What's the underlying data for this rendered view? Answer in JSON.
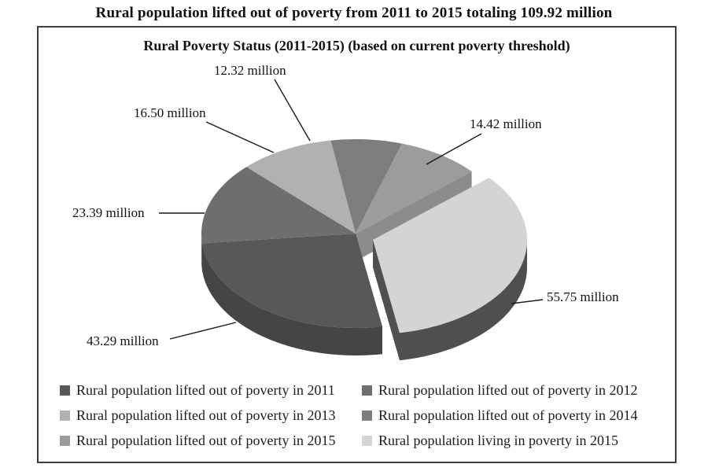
{
  "page": {
    "outer_title": "Rural population lifted out of poverty from 2011 to 2015 totaling 109.92 million"
  },
  "chart_data": {
    "type": "pie",
    "style": "3d-exploded-pie",
    "title": "Rural Poverty Status (2011-2015) (based on current poverty threshold)",
    "slices": [
      {
        "label": "Rural population lifted out of poverty in 2011",
        "value": 43.29,
        "callout": "43.29 million",
        "color": "#585858",
        "side_color": "#454545",
        "exploded": false
      },
      {
        "label": "Rural population lifted out of poverty in 2012",
        "value": 23.39,
        "callout": "23.39 million",
        "color": "#6e6e6e",
        "side_color": "#575757",
        "exploded": false
      },
      {
        "label": "Rural population lifted out of poverty in 2013",
        "value": 16.5,
        "callout": "16.50 million",
        "color": "#b1b1b1",
        "side_color": "#909090",
        "exploded": false
      },
      {
        "label": "Rural population lifted out of poverty in 2014",
        "value": 12.32,
        "callout": "12.32 million",
        "color": "#7d7d7d",
        "side_color": "#656565",
        "exploded": false
      },
      {
        "label": "Rural population lifted out of poverty in 2015",
        "value": 14.42,
        "callout": "14.42 million",
        "color": "#9c9c9c",
        "side_color": "#8c8c8c",
        "exploded": false
      },
      {
        "label": "Rural population living in poverty in 2015",
        "value": 55.75,
        "callout": "55.75 million",
        "color": "#d4d4d4",
        "side_color": "#4f4f4f",
        "exploded": true
      }
    ],
    "legend": {
      "position": "bottom",
      "columns": 2
    },
    "leader_line_color": "#1a1a1a"
  }
}
